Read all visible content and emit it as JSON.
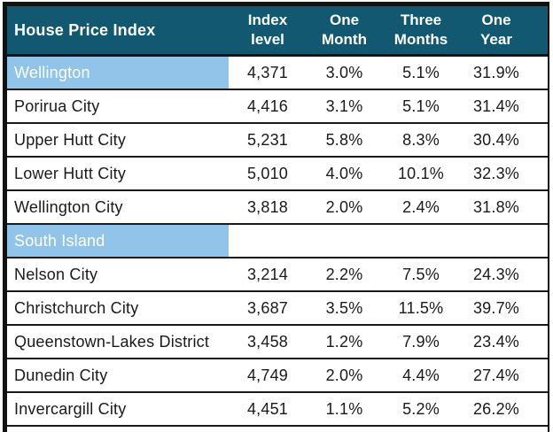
{
  "title": "House Price Index",
  "columns": {
    "index_level": {
      "line1": "Index",
      "line2": "level"
    },
    "one_month": {
      "line1": "One",
      "line2": "Month"
    },
    "three_months": {
      "line1": "Three",
      "line2": "Months"
    },
    "one_year": {
      "line1": "One",
      "line2": "Year"
    }
  },
  "rows": [
    {
      "name": "Wellington",
      "index_level": "4,371",
      "one_month": "3.0%",
      "three_months": "5.1%",
      "one_year": "31.9%",
      "section": true
    },
    {
      "name": "Porirua City",
      "index_level": "4,416",
      "one_month": "3.1%",
      "three_months": "5.1%",
      "one_year": "31.4%",
      "section": false
    },
    {
      "name": "Upper Hutt City",
      "index_level": "5,231",
      "one_month": "5.8%",
      "three_months": "8.3%",
      "one_year": "30.4%",
      "section": false
    },
    {
      "name": "Lower Hutt City",
      "index_level": "5,010",
      "one_month": "4.0%",
      "three_months": "10.1%",
      "one_year": "32.3%",
      "section": false
    },
    {
      "name": "Wellington City",
      "index_level": "3,818",
      "one_month": "2.0%",
      "three_months": "2.4%",
      "one_year": "31.8%",
      "section": false
    },
    {
      "name": "South Island",
      "index_level": "",
      "one_month": "",
      "three_months": "",
      "one_year": "",
      "section": true
    },
    {
      "name": "Nelson City",
      "index_level": "3,214",
      "one_month": "2.2%",
      "three_months": "7.5%",
      "one_year": "24.3%",
      "section": false
    },
    {
      "name": "Christchurch City",
      "index_level": "3,687",
      "one_month": "3.5%",
      "three_months": "11.5%",
      "one_year": "39.7%",
      "section": false
    },
    {
      "name": "Queenstown-Lakes District",
      "index_level": "3,458",
      "one_month": "1.2%",
      "three_months": "7.9%",
      "one_year": "23.4%",
      "section": false
    },
    {
      "name": "Dunedin City",
      "index_level": "4,749",
      "one_month": "2.0%",
      "three_months": "4.4%",
      "one_year": "27.4%",
      "section": false
    },
    {
      "name": "Invercargill City",
      "index_level": "4,451",
      "one_month": "1.1%",
      "three_months": "5.2%",
      "one_year": "26.2%",
      "section": false
    }
  ],
  "colors": {
    "header_bg": "#125870",
    "header_text": "#ffffff",
    "section_highlight_bg": "#92c4e9",
    "section_highlight_text": "#ffffff",
    "row_border": "#1a1a1a",
    "outer_border": "#121212",
    "body_text": "#1a1a1a"
  }
}
